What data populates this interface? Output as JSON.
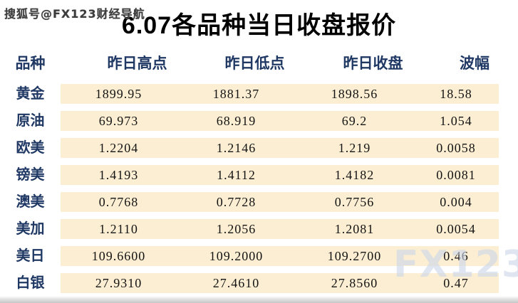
{
  "watermark_top": "搜狐号@FX123财经导航",
  "title": "6.07各品种当日收盘报价",
  "logo_watermark": "FX123",
  "colors": {
    "band": "#fceed2",
    "header_text": "#1f3864",
    "label_text": "#1f3864",
    "data_text": "#141414",
    "logo_watermark": "#cdd8e9",
    "bottom_bar": "#c6c6c6"
  },
  "table": {
    "headers": [
      "品种",
      "昨日高点",
      "昨日低点",
      "昨日收盘",
      "波幅"
    ],
    "rows": [
      {
        "label": "黄金",
        "values": [
          "1899.95",
          "1881.37",
          "1898.56",
          "18.58"
        ]
      },
      {
        "label": "原油",
        "values": [
          "69.973",
          "68.919",
          "69.2",
          "1.054"
        ]
      },
      {
        "label": "欧美",
        "values": [
          "1.2204",
          "1.2146",
          "1.219",
          "0.0058"
        ]
      },
      {
        "label": "镑美",
        "values": [
          "1.4193",
          "1.4112",
          "1.4182",
          "0.0081"
        ]
      },
      {
        "label": "澳美",
        "values": [
          "0.7768",
          "0.7728",
          "0.7756",
          "0.004"
        ]
      },
      {
        "label": "美加",
        "values": [
          "1.2110",
          "1.2056",
          "1.2081",
          "0.0054"
        ]
      },
      {
        "label": "美日",
        "values": [
          "109.6600",
          "109.2000",
          "109.2700",
          "0.46"
        ]
      },
      {
        "label": "白银",
        "values": [
          "27.9310",
          "27.4610",
          "27.8560",
          "0.47"
        ]
      }
    ]
  },
  "chart_data": {
    "type": "table",
    "title": "6.07各品种当日收盘报价",
    "columns": [
      "品种",
      "昨日高点",
      "昨日低点",
      "昨日收盘",
      "波幅"
    ],
    "rows": [
      [
        "黄金",
        1899.95,
        1881.37,
        1898.56,
        18.58
      ],
      [
        "原油",
        69.973,
        68.919,
        69.2,
        1.054
      ],
      [
        "欧美",
        1.2204,
        1.2146,
        1.219,
        0.0058
      ],
      [
        "镑美",
        1.4193,
        1.4112,
        1.4182,
        0.0081
      ],
      [
        "澳美",
        0.7768,
        0.7728,
        0.7756,
        0.004
      ],
      [
        "美加",
        1.211,
        1.2056,
        1.2081,
        0.0054
      ],
      [
        "美日",
        109.66,
        109.2,
        109.27,
        0.46
      ],
      [
        "白银",
        27.931,
        27.461,
        27.856,
        0.47
      ]
    ]
  }
}
